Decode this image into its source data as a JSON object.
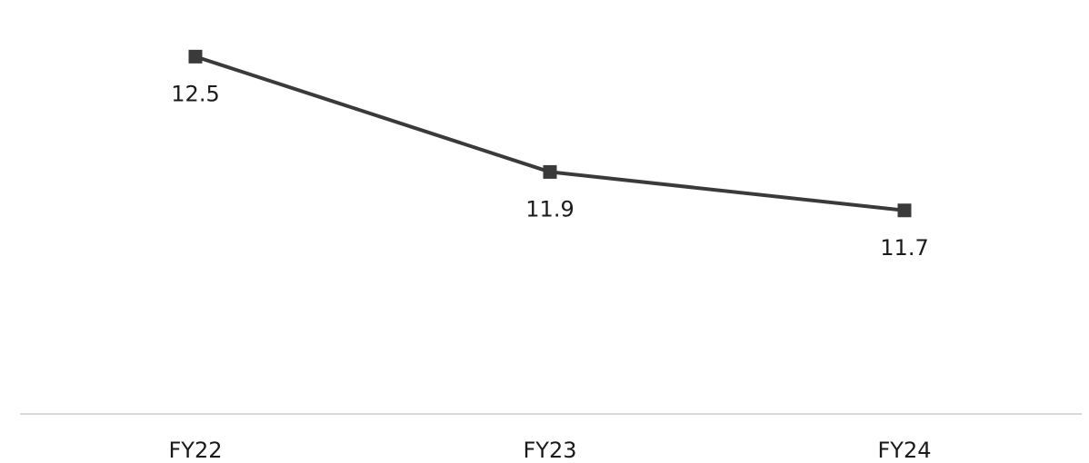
{
  "chart_data": {
    "type": "line",
    "title": "",
    "xlabel": "",
    "ylabel": "",
    "categories": [
      "FY22",
      "FY23",
      "FY24"
    ],
    "series": [
      {
        "values": [
          12.5,
          11.9,
          11.7
        ],
        "color": "#3a3a3a",
        "labels": [
          "12.5",
          "11.9",
          "11.7"
        ]
      }
    ],
    "ylim": [
      11.0,
      12.7
    ],
    "grid": false,
    "legend": "none",
    "colors": {
      "line": "#3a3a3a",
      "marker": "#3a3a3a",
      "text": "#1a1a1a",
      "baseline": "#d9d9d9"
    }
  }
}
